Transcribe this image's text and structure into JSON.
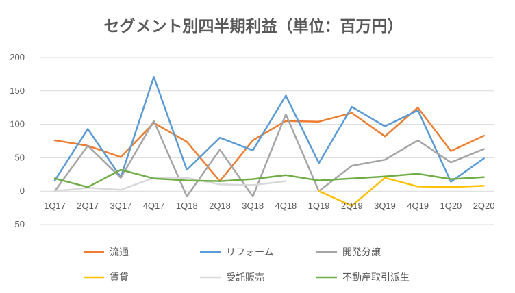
{
  "chart_data": {
    "type": "line",
    "title": "セグメント別四半期利益（単位：百万円）",
    "xlabel": "",
    "ylabel": "",
    "categories": [
      "1Q17",
      "2Q17",
      "3Q17",
      "4Q17",
      "1Q18",
      "2Q18",
      "3Q18",
      "4Q18",
      "1Q19",
      "2Q19",
      "3Q19",
      "4Q19",
      "1Q20",
      "2Q20"
    ],
    "ylim": [
      -50,
      200
    ],
    "yticks": [
      -50,
      0,
      50,
      100,
      150,
      200
    ],
    "grid": true,
    "legend_position": "bottom",
    "series": [
      {
        "name": "流通",
        "color": "#ED7D31",
        "values": [
          76,
          68,
          51,
          102,
          74,
          15,
          76,
          105,
          104,
          117,
          82,
          125,
          60,
          83
        ]
      },
      {
        "name": "リフォーム",
        "color": "#5B9BD5",
        "values": [
          16,
          93,
          21,
          171,
          32,
          80,
          61,
          143,
          42,
          126,
          97,
          121,
          14,
          49
        ]
      },
      {
        "name": "開発分譲",
        "color": "#A5A5A5",
        "values": [
          0,
          68,
          20,
          105,
          -8,
          62,
          -8,
          115,
          0,
          38,
          47,
          76,
          43,
          63
        ]
      },
      {
        "name": "賃貸",
        "color": "#FFC000",
        "values": [
          null,
          null,
          null,
          null,
          null,
          null,
          null,
          null,
          0,
          -22,
          20,
          7,
          6,
          8
        ]
      },
      {
        "name": "受託販売",
        "color": "#D9D9D9",
        "values": [
          0,
          5,
          2,
          20,
          20,
          10,
          9,
          15,
          null,
          null,
          null,
          null,
          null,
          null
        ]
      },
      {
        "name": "不動産取引派生",
        "color": "#70AD47",
        "values": [
          19,
          6,
          32,
          19,
          16,
          15,
          18,
          24,
          16,
          19,
          22,
          26,
          18,
          21
        ]
      }
    ]
  }
}
